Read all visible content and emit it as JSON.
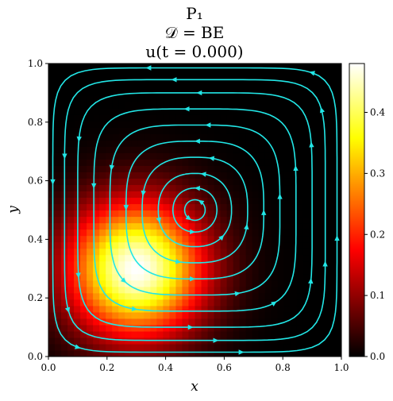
{
  "chart_data": {
    "type": "heatmap",
    "title_lines": [
      "P₁",
      "𝒟 = BE",
      "u(t = 0.000)"
    ],
    "xlabel": "x",
    "ylabel": "y",
    "xlim": [
      0.0,
      1.0
    ],
    "ylim": [
      0.0,
      1.0
    ],
    "x_ticks": [
      0.0,
      0.2,
      0.4,
      0.6,
      0.8,
      1.0
    ],
    "y_ticks": [
      0.0,
      0.2,
      0.4,
      0.6,
      0.8,
      1.0
    ],
    "x_tick_labels": [
      "0.0",
      "0.2",
      "0.4",
      "0.6",
      "0.8",
      "1.0"
    ],
    "y_tick_labels": [
      "0.0",
      "0.2",
      "0.4",
      "0.6",
      "0.8",
      "1.0"
    ],
    "field": {
      "peak_value": 0.48,
      "peak_location": [
        0.3,
        0.3
      ],
      "spread": 0.16
    },
    "colorbar": {
      "colormap": "hot",
      "range": [
        0.0,
        0.48
      ],
      "ticks": [
        0.0,
        0.1,
        0.2,
        0.3,
        0.4
      ],
      "tick_labels": [
        "0.0",
        "0.1",
        "0.2",
        "0.3",
        "0.4"
      ]
    },
    "streamlines": {
      "color": "#22e6e6",
      "center": [
        0.5,
        0.5
      ],
      "direction": "counterclockwise"
    }
  }
}
